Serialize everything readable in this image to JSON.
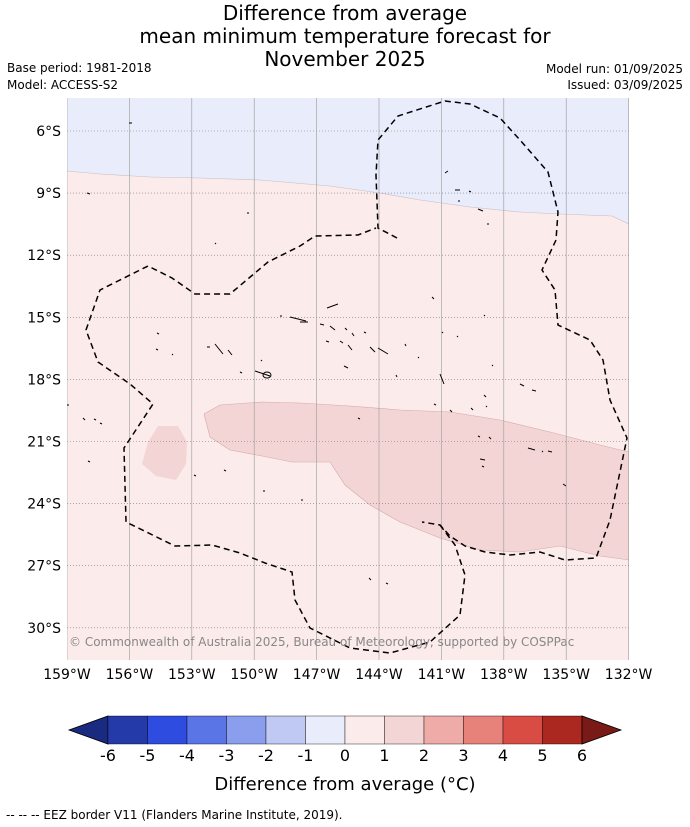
{
  "title": {
    "line1": "Difference from average",
    "line2": "mean minimum temperature forecast for",
    "line3": "November 2025"
  },
  "info": {
    "base_period": "Base period: 1981-2018",
    "model": "Model: ACCESS-S2",
    "model_run": "Model run: 01/09/2025",
    "issued": "Issued: 03/09/2025"
  },
  "map": {
    "lat_labels": [
      "6°S",
      "9°S",
      "12°S",
      "15°S",
      "18°S",
      "21°S",
      "24°S",
      "27°S",
      "30°S"
    ],
    "lon_labels": [
      "159°W",
      "156°W",
      "153°W",
      "150°W",
      "147°W",
      "144°W",
      "141°W",
      "138°W",
      "135°W",
      "132°W"
    ],
    "copyright": "© Commonwealth of Australia 2025, Bureau of Meteorology, supported by COSPPac",
    "colors": {
      "band_minus1_0": "#e8ecfb",
      "band_0_1": "#fbebea",
      "band_1_2": "#f4d5d5"
    }
  },
  "colorbar": {
    "ticks": [
      "-6",
      "-5",
      "-4",
      "-3",
      "-2",
      "-1",
      "0",
      "1",
      "2",
      "3",
      "4",
      "5",
      "6"
    ],
    "colors": [
      "#243aa8",
      "#2e4de0",
      "#5a75e6",
      "#8b9eee",
      "#c0c9f4",
      "#e8ecfb",
      "#fbebea",
      "#f4d5d5",
      "#eeaba8",
      "#e7827b",
      "#d94c43",
      "#ab2821"
    ],
    "under_color": "#1a2a80",
    "over_color": "#7a1a17",
    "label": "Difference from average (°C)"
  },
  "footer": {
    "legend": "-- -- -- EEZ border V11 (Flanders Marine Institute, 2019)."
  }
}
